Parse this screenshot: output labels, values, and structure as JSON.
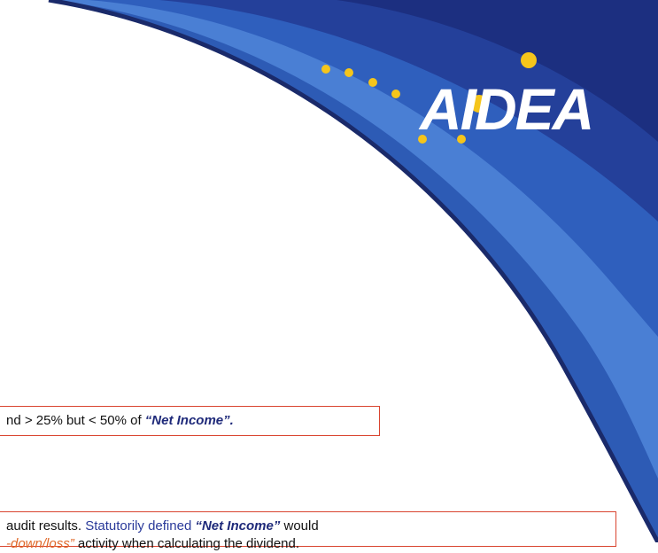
{
  "logo": {
    "text": "AIDEA"
  },
  "boxes": [
    {
      "lines": [
        [
          {
            "text": "nd > 25% but < 50% of ",
            "style": "plain"
          },
          {
            "text": "“Net Income”.",
            "style": "key"
          }
        ]
      ]
    },
    {
      "lines": [
        [
          {
            "text": "audit results. ",
            "style": "plain"
          },
          {
            "text": "Statutorily defined ",
            "style": "blue"
          },
          {
            "text": "“Net Income”",
            "style": "key"
          },
          {
            "text": " would",
            "style": "plain"
          }
        ],
        [
          {
            "text": "-down/loss”",
            "style": "orange"
          },
          {
            "text": " activity when calculating the dividend.",
            "style": "plain"
          }
        ]
      ]
    }
  ]
}
